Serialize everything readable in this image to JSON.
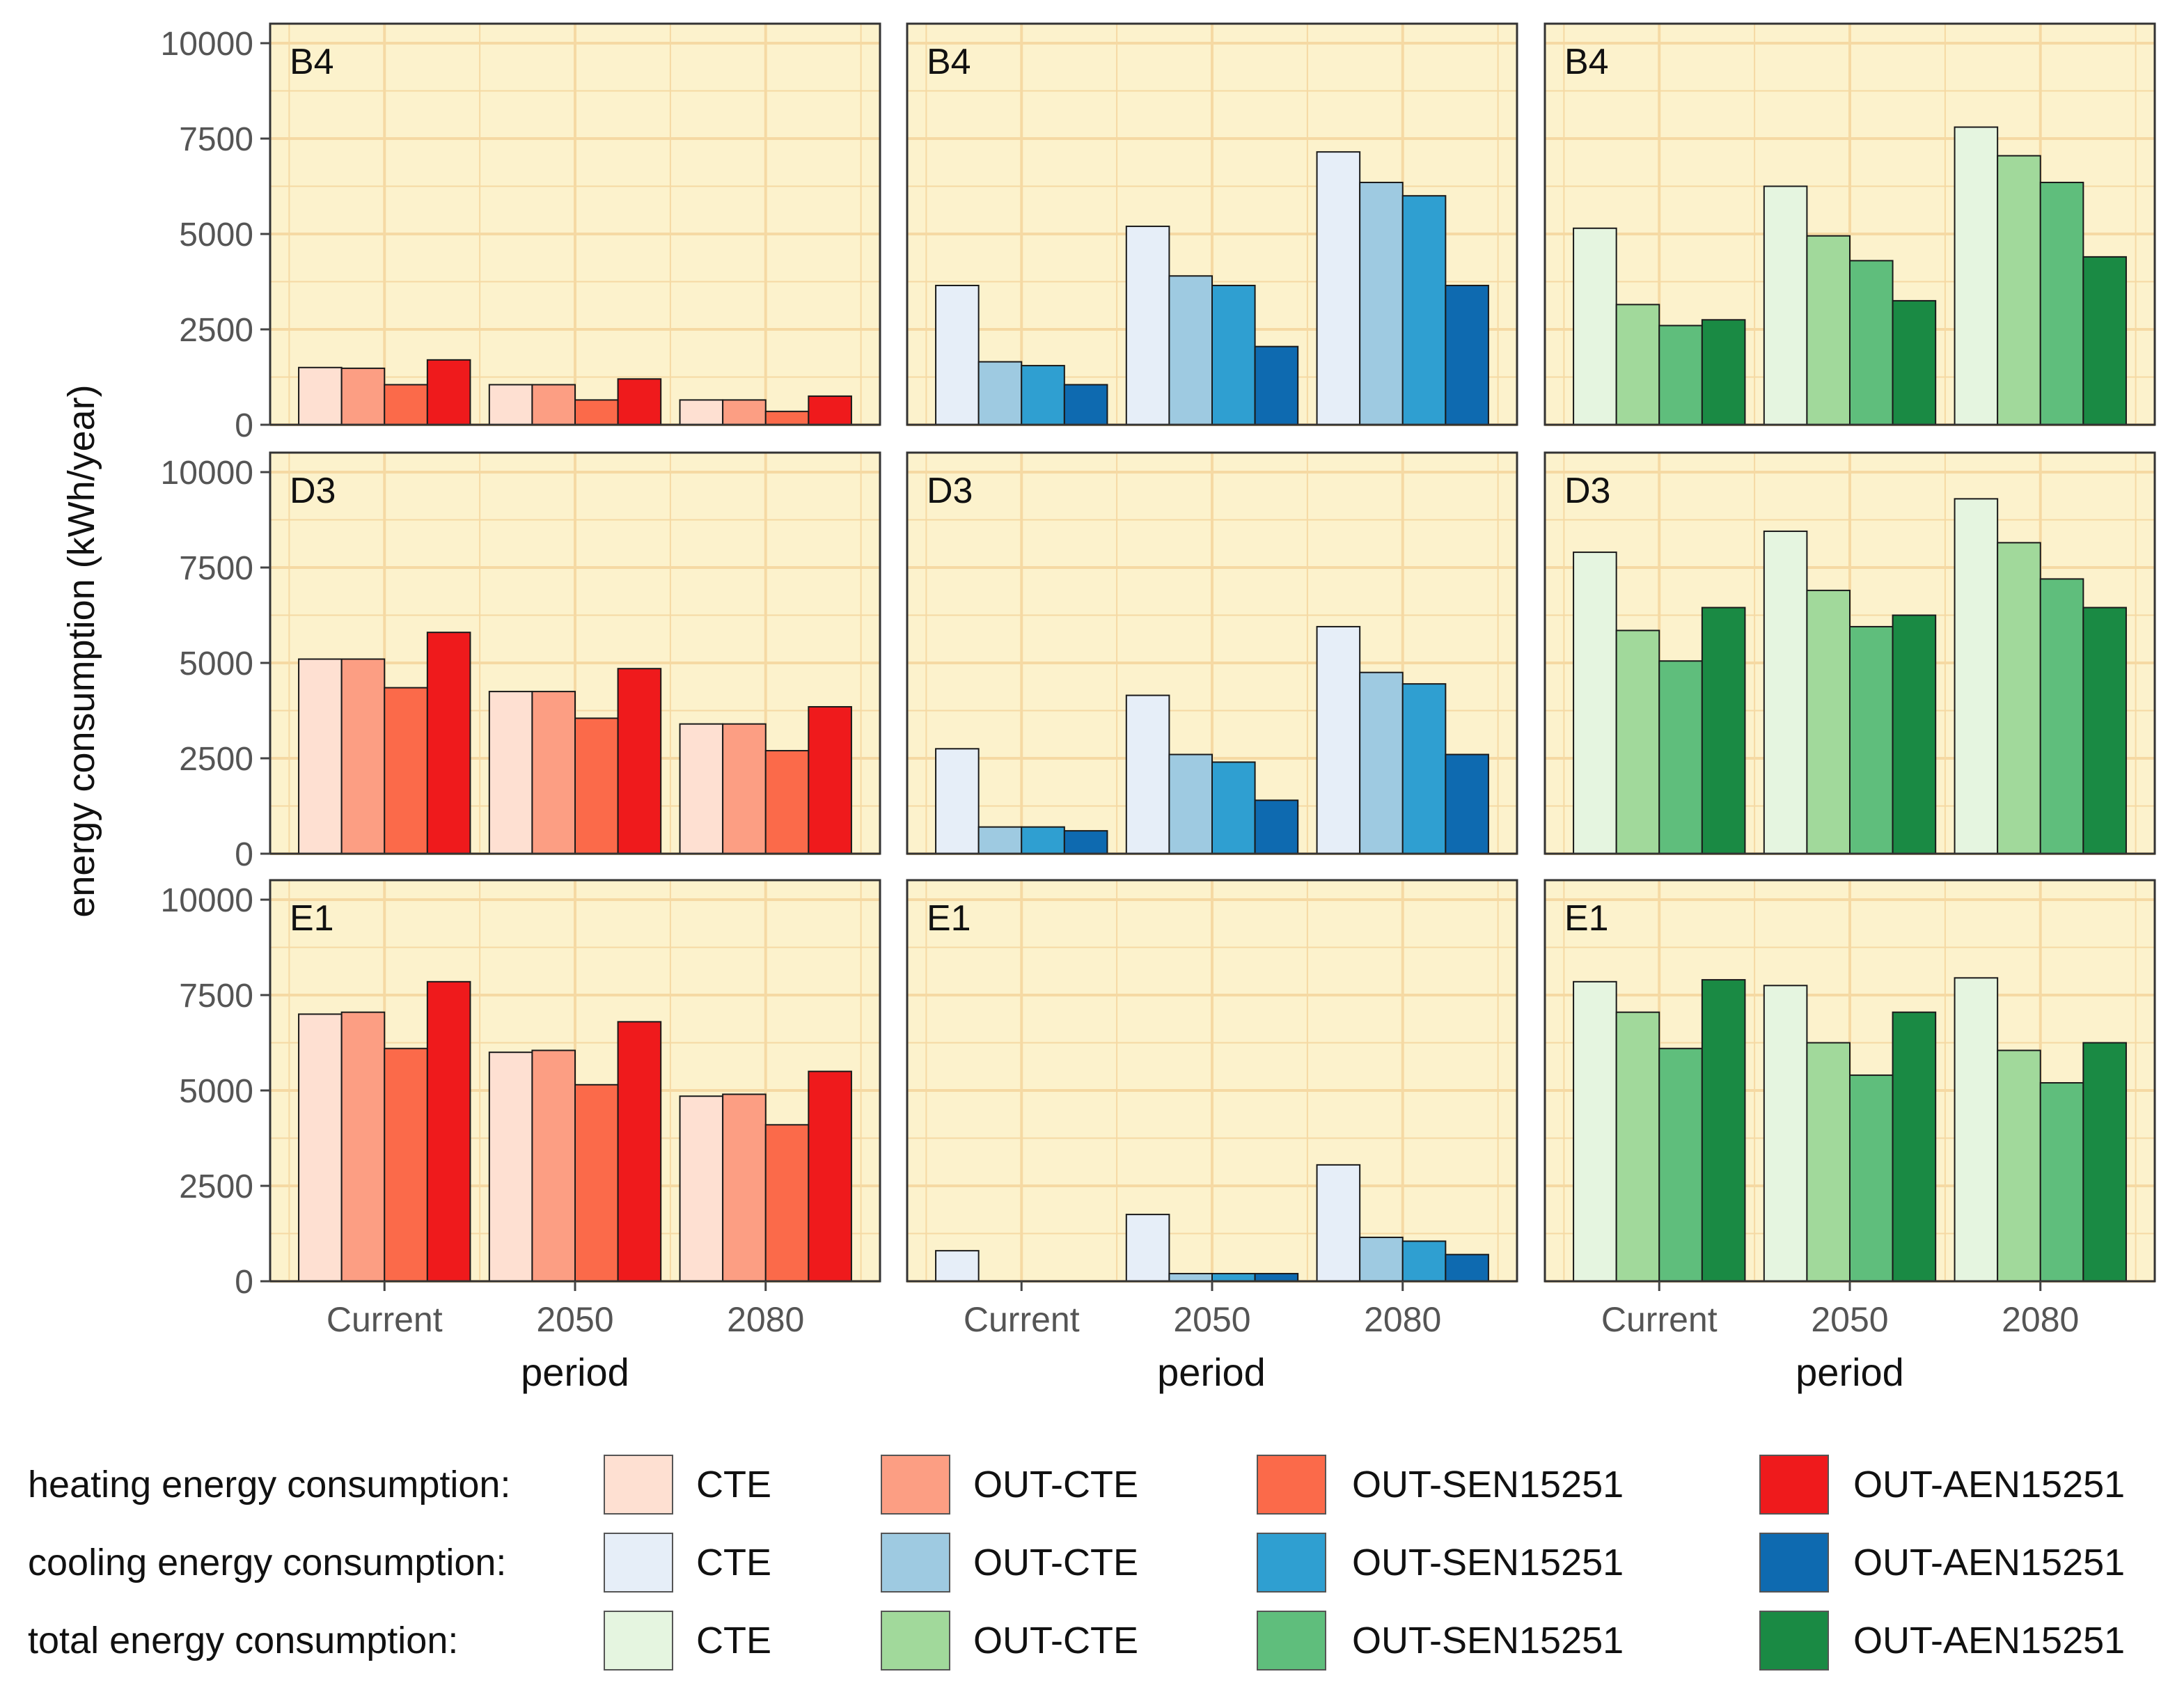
{
  "chart_data": {
    "type": "bar",
    "layout": "facet-grid",
    "ylabel": "energy consumption (kWh/year)",
    "xlabel": "period",
    "categories": [
      "Current",
      "2050",
      "2080"
    ],
    "ylim": [
      0,
      10000
    ],
    "yticks": [
      "0",
      "2500",
      "5000",
      "7500",
      "10000"
    ],
    "series_names": [
      "CTE",
      "OUT-CTE",
      "OUT-SEN15251",
      "OUT-AEN15251"
    ],
    "grid": true,
    "legend_position": "bottom",
    "legend_rows": [
      {
        "label": "heating energy consumption:",
        "colors": [
          "#fee0d2",
          "#fc9e83",
          "#fb6a4a",
          "#ef1a1c"
        ]
      },
      {
        "label": "cooling energy consumption:",
        "colors": [
          "#e6eef8",
          "#9ecae1",
          "#2f9fd1",
          "#0e6ab0"
        ]
      },
      {
        "label": "total energy consumption:",
        "colors": [
          "#e5f5e0",
          "#a1d99b",
          "#5fbe7c",
          "#1a8a44"
        ]
      }
    ],
    "panels": [
      {
        "row": "B4",
        "col": "heating",
        "series": [
          {
            "name": "CTE",
            "values": [
              1500,
              1050,
              650
            ]
          },
          {
            "name": "OUT-CTE",
            "values": [
              1480,
              1050,
              650
            ]
          },
          {
            "name": "OUT-SEN15251",
            "values": [
              1050,
              650,
              350
            ]
          },
          {
            "name": "OUT-AEN15251",
            "values": [
              1700,
              1200,
              750
            ]
          }
        ]
      },
      {
        "row": "B4",
        "col": "cooling",
        "series": [
          {
            "name": "CTE",
            "values": [
              3650,
              5200,
              7150
            ]
          },
          {
            "name": "OUT-CTE",
            "values": [
              1650,
              3900,
              6350
            ]
          },
          {
            "name": "OUT-SEN15251",
            "values": [
              1550,
              3650,
              6000
            ]
          },
          {
            "name": "OUT-AEN15251",
            "values": [
              1050,
              2050,
              3650
            ]
          }
        ]
      },
      {
        "row": "B4",
        "col": "total",
        "series": [
          {
            "name": "CTE",
            "values": [
              5150,
              6250,
              7800
            ]
          },
          {
            "name": "OUT-CTE",
            "values": [
              3150,
              4950,
              7050
            ]
          },
          {
            "name": "OUT-SEN15251",
            "values": [
              2600,
              4300,
              6350
            ]
          },
          {
            "name": "OUT-AEN15251",
            "values": [
              2750,
              3250,
              4400
            ]
          }
        ]
      },
      {
        "row": "D3",
        "col": "heating",
        "series": [
          {
            "name": "CTE",
            "values": [
              5100,
              4250,
              3400
            ]
          },
          {
            "name": "OUT-CTE",
            "values": [
              5100,
              4250,
              3400
            ]
          },
          {
            "name": "OUT-SEN15251",
            "values": [
              4350,
              3550,
              2700
            ]
          },
          {
            "name": "OUT-AEN15251",
            "values": [
              5800,
              4850,
              3850
            ]
          }
        ]
      },
      {
        "row": "D3",
        "col": "cooling",
        "series": [
          {
            "name": "CTE",
            "values": [
              2750,
              4150,
              5950
            ]
          },
          {
            "name": "OUT-CTE",
            "values": [
              700,
              2600,
              4750
            ]
          },
          {
            "name": "OUT-SEN15251",
            "values": [
              700,
              2400,
              4450
            ]
          },
          {
            "name": "OUT-AEN15251",
            "values": [
              600,
              1400,
              2600
            ]
          }
        ]
      },
      {
        "row": "D3",
        "col": "total",
        "series": [
          {
            "name": "CTE",
            "values": [
              7900,
              8450,
              9300
            ]
          },
          {
            "name": "OUT-CTE",
            "values": [
              5850,
              6900,
              8150
            ]
          },
          {
            "name": "OUT-SEN15251",
            "values": [
              5050,
              5950,
              7200
            ]
          },
          {
            "name": "OUT-AEN15251",
            "values": [
              6450,
              6250,
              6450
            ]
          }
        ]
      },
      {
        "row": "E1",
        "col": "heating",
        "series": [
          {
            "name": "CTE",
            "values": [
              7000,
              6000,
              4850
            ]
          },
          {
            "name": "OUT-CTE",
            "values": [
              7050,
              6050,
              4900
            ]
          },
          {
            "name": "OUT-SEN15251",
            "values": [
              6100,
              5150,
              4100
            ]
          },
          {
            "name": "OUT-AEN15251",
            "values": [
              7850,
              6800,
              5500
            ]
          }
        ]
      },
      {
        "row": "E1",
        "col": "cooling",
        "series": [
          {
            "name": "CTE",
            "values": [
              800,
              1750,
              3050
            ]
          },
          {
            "name": "OUT-CTE",
            "values": [
              0,
              200,
              1150
            ]
          },
          {
            "name": "OUT-SEN15251",
            "values": [
              0,
              200,
              1050
            ]
          },
          {
            "name": "OUT-AEN15251",
            "values": [
              0,
              200,
              700
            ]
          }
        ]
      },
      {
        "row": "E1",
        "col": "total",
        "series": [
          {
            "name": "CTE",
            "values": [
              7850,
              7750,
              7950
            ]
          },
          {
            "name": "OUT-CTE",
            "values": [
              7050,
              6250,
              6050
            ]
          },
          {
            "name": "OUT-SEN15251",
            "values": [
              6100,
              5400,
              5200
            ]
          },
          {
            "name": "OUT-AEN15251",
            "values": [
              7900,
              7050,
              6250
            ]
          }
        ]
      }
    ]
  }
}
